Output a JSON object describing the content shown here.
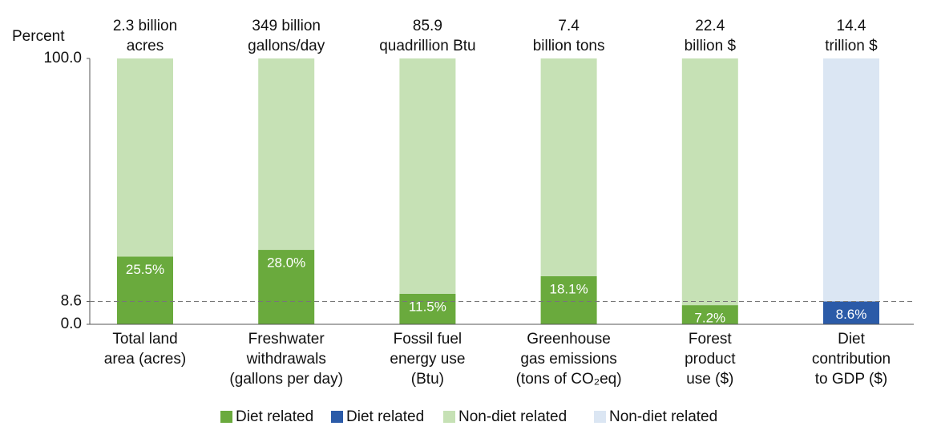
{
  "chart_data": {
    "type": "stacked_bar",
    "y_label": "Percent",
    "categories": [
      [
        "Total land",
        "area (acres)"
      ],
      [
        "Freshwater",
        "withdrawals",
        "(gallons per day)"
      ],
      [
        "Fossil fuel",
        "energy use",
        "(Btu)"
      ],
      [
        "Greenhouse",
        "gas emissions",
        "(tons of CO₂eq)"
      ],
      [
        "Forest",
        "product",
        "use ($)"
      ],
      [
        "Diet",
        "contribution",
        "to GDP ($)"
      ]
    ],
    "totals_labels": [
      [
        "2.3 billion",
        "acres"
      ],
      [
        "349 billion",
        "gallons/day"
      ],
      [
        "85.9",
        "quadrillion Btu"
      ],
      [
        "7.4",
        "billion tons"
      ],
      [
        "22.4",
        "billion $"
      ],
      [
        "14.4",
        "trillion $"
      ]
    ],
    "series": [
      {
        "name": "Diet related",
        "color": "#6aaa3d",
        "values": [
          25.5,
          28.0,
          11.5,
          18.1,
          7.2,
          null
        ],
        "value_labels": [
          "25.5%",
          "28.0%",
          "11.5%",
          "18.1%",
          "7.2%",
          null
        ]
      },
      {
        "name": "Diet related",
        "color": "#2b5ba8",
        "values": [
          null,
          null,
          null,
          null,
          null,
          8.6
        ],
        "value_labels": [
          null,
          null,
          null,
          null,
          null,
          "8.6%"
        ]
      },
      {
        "name": "Non-diet related",
        "color": "#c6e1b5",
        "values": [
          74.5,
          72.0,
          88.5,
          81.9,
          92.8,
          null
        ]
      },
      {
        "name": "Non-diet related",
        "color": "#dbe6f3",
        "values": [
          null,
          null,
          null,
          null,
          null,
          91.4
        ]
      }
    ],
    "ylim": [
      0,
      100
    ],
    "yticks": [
      {
        "value": 0,
        "label": "0.0"
      },
      {
        "value": 8.6,
        "label": "8.6"
      },
      {
        "value": 100,
        "label": "100.0"
      }
    ],
    "reference_line": 8.6
  }
}
